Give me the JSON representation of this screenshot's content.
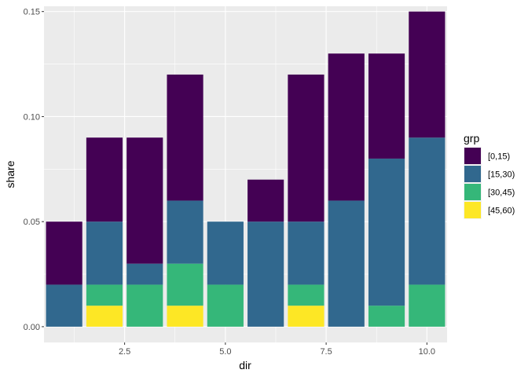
{
  "chart_data": {
    "type": "bar",
    "stacked": true,
    "xlabel": "dir",
    "ylabel": "share",
    "xlim": [
      0.5,
      10.5
    ],
    "ylim": [
      -0.0075,
      0.1525
    ],
    "x_ticks": [
      2.5,
      5.0,
      7.5,
      10.0
    ],
    "x_tick_labels": [
      "2.5",
      "5.0",
      "7.5",
      "10.0"
    ],
    "y_ticks": [
      0.0,
      0.05,
      0.1,
      0.15
    ],
    "y_tick_labels": [
      "0.00",
      "0.05",
      "0.10",
      "0.15"
    ],
    "x": [
      1,
      2,
      3,
      4,
      5,
      6,
      7,
      8,
      9,
      10
    ],
    "legend": {
      "title": "grp",
      "position": "right",
      "entries": [
        "[0,15)",
        "[15,30)",
        "[30,45)",
        "[45,60)"
      ]
    },
    "series": [
      {
        "name": "[0,15)",
        "color": "#440154",
        "values": [
          0.03,
          0.04,
          0.06,
          0.06,
          0.0,
          0.02,
          0.07,
          0.07,
          0.05,
          0.06
        ]
      },
      {
        "name": "[15,30)",
        "color": "#31688E",
        "values": [
          0.02,
          0.03,
          0.01,
          0.03,
          0.03,
          0.05,
          0.03,
          0.06,
          0.07,
          0.07
        ]
      },
      {
        "name": "[30,45)",
        "color": "#35B779",
        "values": [
          0.0,
          0.01,
          0.02,
          0.02,
          0.02,
          0.0,
          0.01,
          0.0,
          0.01,
          0.02
        ]
      },
      {
        "name": "[45,60)",
        "color": "#FDE725",
        "values": [
          0.0,
          0.01,
          0.0,
          0.01,
          0.0,
          0.0,
          0.01,
          0.0,
          0.0,
          0.0
        ]
      }
    ]
  }
}
